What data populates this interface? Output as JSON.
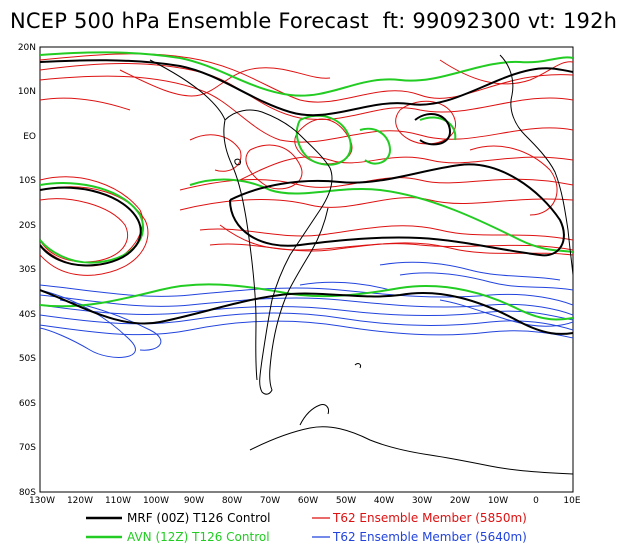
{
  "title": "NCEP 500 hPa Ensemble Forecast  ft: 99092300 vt: 192h",
  "map": {
    "lat_labels": [
      "20N",
      "10N",
      "EO",
      "10S",
      "20S",
      "30S",
      "40S",
      "50S",
      "60S",
      "70S",
      "80S"
    ],
    "lon_labels": [
      "130W",
      "120W",
      "110W",
      "100W",
      "90W",
      "80W",
      "70W",
      "60W",
      "50W",
      "40W",
      "30W",
      "20W",
      "10W",
      "0",
      "10E"
    ]
  },
  "legend": [
    {
      "label": "MRF (00Z) T126 Control",
      "color": "#000000"
    },
    {
      "label": "AVN (12Z) T126 Control",
      "color": "#22cc22"
    },
    {
      "label": "T62 Ensemble Member (5850m)",
      "color": "#dd1111"
    },
    {
      "label": "T62 Ensemble Member (5640m)",
      "color": "#2244dd"
    }
  ],
  "colors": {
    "mrf": "#000000",
    "avn": "#22cc22",
    "red": "#dd1111",
    "blue": "#2244dd",
    "coast": "#000000"
  }
}
